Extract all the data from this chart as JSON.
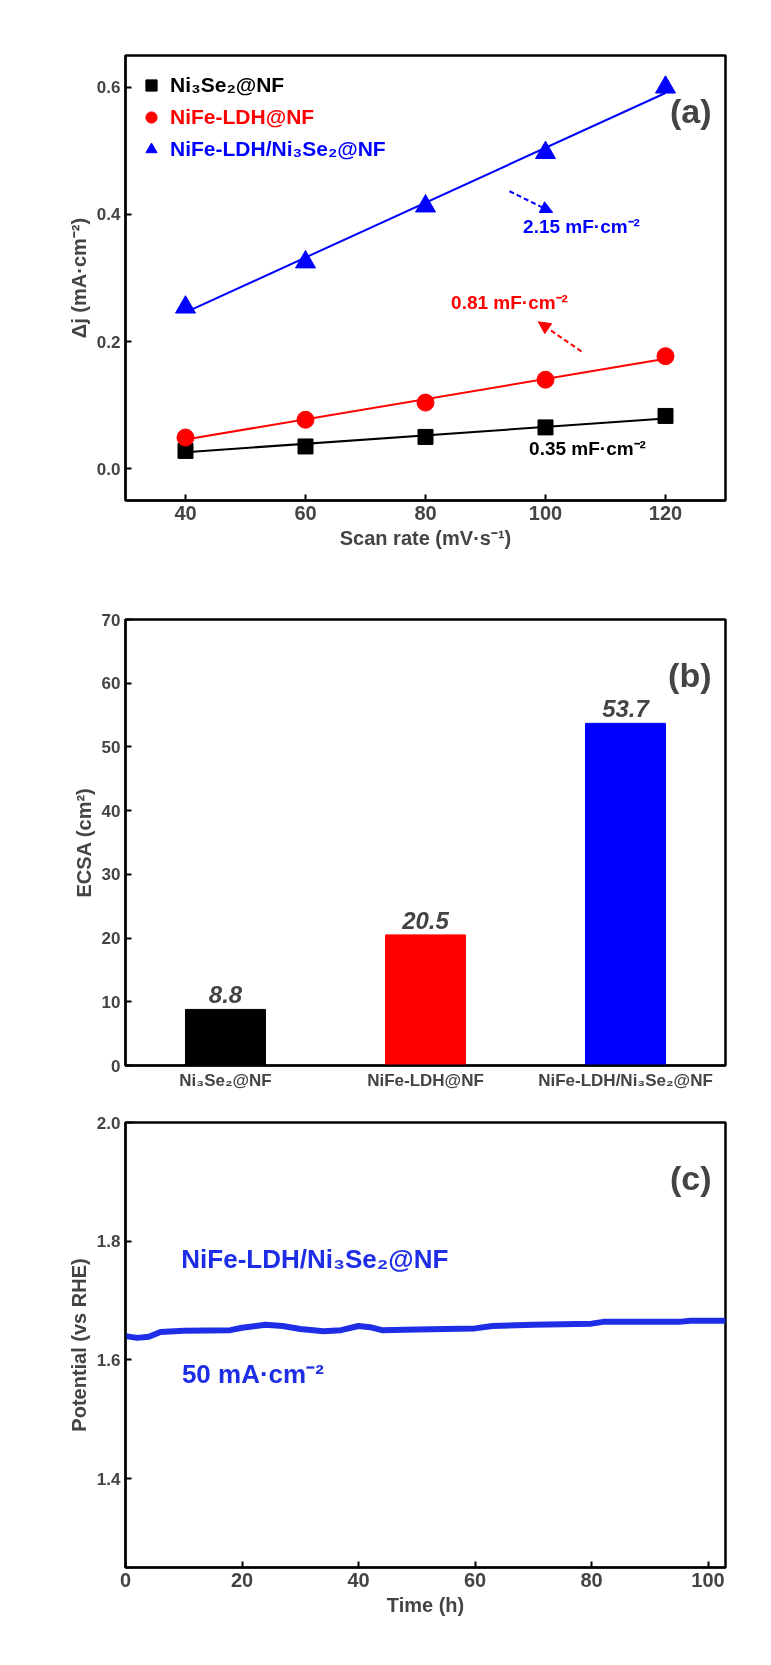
{
  "chart_data": [
    {
      "type": "scatter",
      "xlabel": "Scan rate (mV·s⁻¹)",
      "ylabel": "Δj (mA·cm⁻²)",
      "x": [
        40,
        60,
        80,
        100,
        120
      ],
      "xlim": [
        30,
        130
      ],
      "ylim": [
        -0.05,
        0.65
      ],
      "xticks": [
        40,
        60,
        80,
        100,
        120
      ],
      "yticks": [
        {
          "value": 0,
          "label": "0.0"
        },
        0.2,
        0.4,
        0.6
      ],
      "legend": "top left",
      "annotations": [
        "(a)",
        "0.35 mF·cm⁻²",
        "0.81 mF·cm⁻²",
        "2.15 mF·cm⁻²"
      ],
      "series": [
        {
          "name": "Ni₃Se₂@NF",
          "color": "#000000",
          "marker": "square",
          "values": [
            0.028,
            0.035,
            0.05,
            0.065,
            0.083
          ]
        },
        {
          "name": "NiFe-LDH@NF",
          "color": "#ff0000",
          "marker": "circle",
          "values": [
            0.049,
            0.077,
            0.104,
            0.14,
            0.177
          ]
        },
        {
          "name": "NiFe-LDH/Ni₃Se₂@NF",
          "color": "#0000ff",
          "marker": "triangle",
          "values": [
            0.254,
            0.325,
            0.413,
            0.497,
            0.6
          ]
        },
        {
          "type": "line",
          "color": "#000000",
          "x": [
            40,
            120
          ],
          "values": [
            0.026,
            0.079
          ]
        },
        {
          "type": "line",
          "color": "#ff0000",
          "x": [
            40,
            120
          ],
          "values": [
            0.046,
            0.173
          ]
        },
        {
          "type": "line",
          "color": "#0000ff",
          "x": [
            40,
            120
          ],
          "values": [
            0.246,
            0.591
          ]
        }
      ]
    },
    {
      "type": "bar",
      "ylabel": "ECSA (cm²)",
      "categories": [
        "Ni₃Se₂@NF",
        "NiFe-LDH@NF",
        "NiFe-LDH/Ni₃Se₂@NF"
      ],
      "values": [
        8.8,
        20.5,
        53.7
      ],
      "colors": [
        "#000000",
        "#ff0000",
        "#0000ff"
      ],
      "ylim": [
        0,
        70
      ],
      "yticks": [
        0,
        10,
        20,
        30,
        40,
        50,
        60,
        70
      ],
      "data_labels": true,
      "annotations": [
        "(b)"
      ]
    },
    {
      "type": "line",
      "xlabel": "Time (h)",
      "ylabel": "Potential (vs RHE)",
      "xlim": [
        0,
        103
      ],
      "ylim": [
        1.25,
        2.0
      ],
      "xticks": [
        0,
        20,
        40,
        60,
        80,
        100
      ],
      "yticks": [
        1.4,
        1.6,
        1.8,
        {
          "value": 2.0,
          "label": "2.0"
        }
      ],
      "annotations": [
        "(c)",
        "50 mA·cm⁻²"
      ],
      "series": [
        {
          "name": "NiFe-LDH/Ni₃Se₂@NF",
          "color": "#1e2ee6",
          "x": [
            0,
            2,
            4,
            6,
            10,
            18,
            20,
            24,
            27,
            30,
            34,
            37,
            40,
            42,
            44,
            50,
            60,
            63,
            70,
            75,
            80,
            82,
            95,
            97,
            103
          ],
          "values": [
            1.64,
            1.637,
            1.639,
            1.647,
            1.649,
            1.65,
            1.654,
            1.659,
            1.657,
            1.652,
            1.648,
            1.65,
            1.657,
            1.655,
            1.65,
            1.651,
            1.653,
            1.657,
            1.659,
            1.66,
            1.661,
            1.664,
            1.664,
            1.666,
            1.666
          ]
        }
      ]
    }
  ]
}
